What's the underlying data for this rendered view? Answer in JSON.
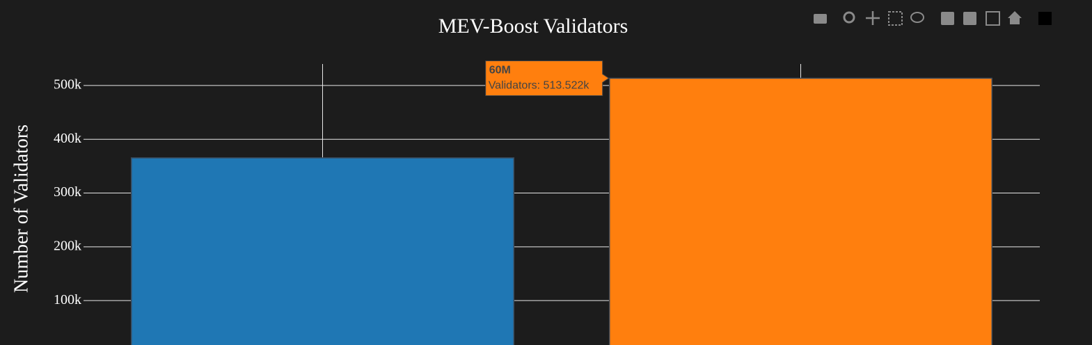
{
  "chart_data": {
    "type": "bar",
    "title": "MEV-Boost Validators",
    "y_label": "Number of Validators",
    "categories": [
      null,
      "60M"
    ],
    "series": [
      {
        "name": "Validators",
        "values": [
          365500,
          513522
        ],
        "colors": [
          "#1f77b4",
          "#ff7f0e"
        ]
      }
    ],
    "ylim": [
      0,
      540000
    ],
    "yticks": [
      {
        "value": 100000,
        "label": "100k"
      },
      {
        "value": 200000,
        "label": "200k"
      },
      {
        "value": 300000,
        "label": "300k"
      },
      {
        "value": 400000,
        "label": "400k"
      },
      {
        "value": 500000,
        "label": "500k"
      }
    ],
    "grid": true,
    "hover": {
      "index": 1,
      "text": "Validators: 513.522k"
    }
  }
}
